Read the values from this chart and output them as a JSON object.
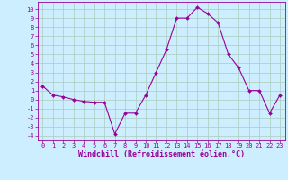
{
  "x": [
    0,
    1,
    2,
    3,
    4,
    5,
    6,
    7,
    8,
    9,
    10,
    11,
    12,
    13,
    14,
    15,
    16,
    17,
    18,
    19,
    20,
    21,
    22,
    23
  ],
  "y": [
    1.5,
    0.5,
    0.3,
    0.0,
    -0.2,
    -0.3,
    -0.3,
    -3.8,
    -1.5,
    -1.5,
    0.5,
    3.0,
    5.5,
    9.0,
    9.0,
    10.2,
    9.5,
    8.5,
    5.0,
    3.5,
    1.0,
    1.0,
    -1.5,
    0.5
  ],
  "line_color": "#990099",
  "marker_color": "#990099",
  "bg_color": "#cceeff",
  "grid_color": "#aaccbb",
  "xlabel": "Windchill (Refroidissement éolien,°C)",
  "xlabel_color": "#990099",
  "ylim": [
    -4.5,
    10.8
  ],
  "xlim": [
    -0.5,
    23.5
  ],
  "yticks": [
    10,
    9,
    8,
    7,
    6,
    5,
    4,
    3,
    2,
    1,
    0,
    -1,
    -2,
    -3,
    -4
  ],
  "xticks": [
    0,
    1,
    2,
    3,
    4,
    5,
    6,
    7,
    8,
    9,
    10,
    11,
    12,
    13,
    14,
    15,
    16,
    17,
    18,
    19,
    20,
    21,
    22,
    23
  ],
  "tick_color": "#990099",
  "tick_fontsize": 5.0,
  "xlabel_fontsize": 6.0,
  "marker_size": 2.0,
  "line_width": 0.8
}
